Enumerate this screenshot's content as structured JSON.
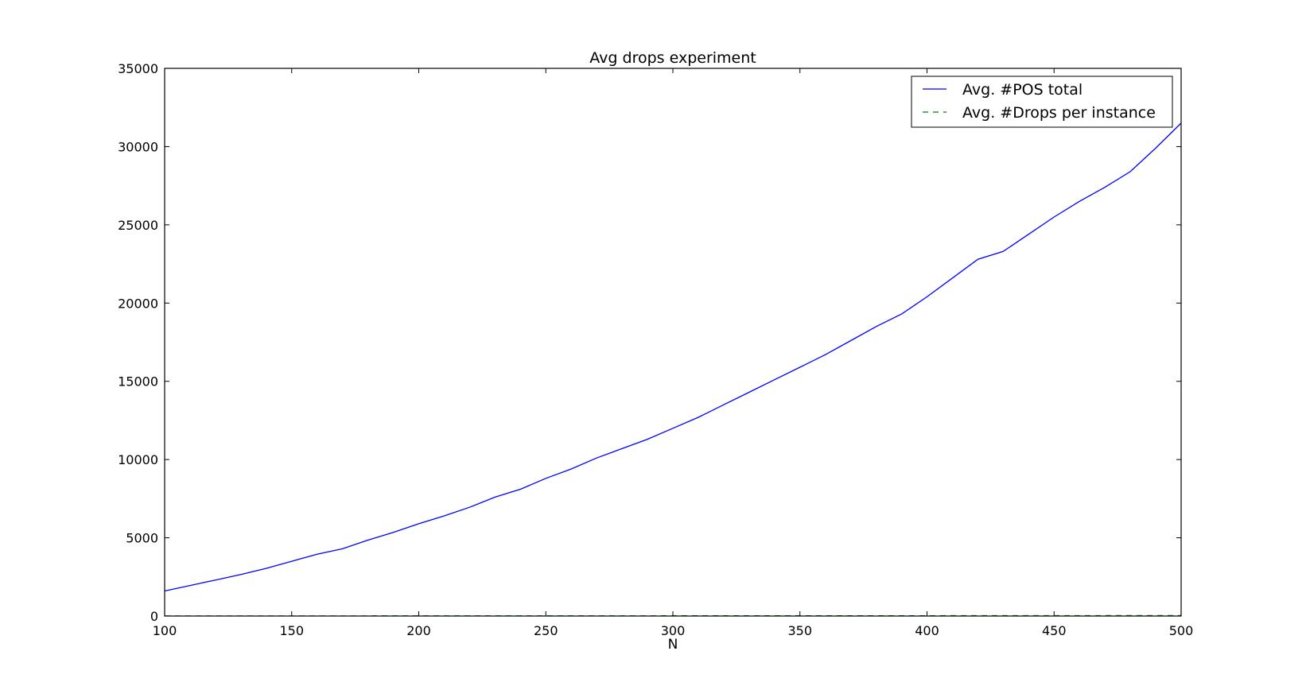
{
  "chart_data": {
    "type": "line",
    "title": "Avg drops experiment",
    "xlabel": "N",
    "ylabel": "",
    "xlim": [
      100,
      500
    ],
    "ylim": [
      0,
      35000
    ],
    "xticks": [
      100,
      150,
      200,
      250,
      300,
      350,
      400,
      450,
      500
    ],
    "yticks": [
      0,
      5000,
      10000,
      15000,
      20000,
      25000,
      30000,
      35000
    ],
    "grid": false,
    "legend_position": "top-right",
    "series": [
      {
        "name": "Avg. #POS total",
        "color": "#0000ff",
        "style": "solid",
        "x": [
          100,
          110,
          120,
          130,
          140,
          150,
          160,
          170,
          180,
          190,
          200,
          210,
          220,
          230,
          240,
          250,
          260,
          270,
          280,
          290,
          300,
          310,
          320,
          330,
          340,
          350,
          360,
          370,
          380,
          390,
          400,
          410,
          420,
          430,
          440,
          450,
          460,
          470,
          480,
          490,
          500
        ],
        "y": [
          1600,
          1950,
          2300,
          2650,
          3050,
          3500,
          3950,
          4300,
          4850,
          5350,
          5900,
          6400,
          6950,
          7600,
          8100,
          8800,
          9400,
          10100,
          10700,
          11300,
          12000,
          12700,
          13500,
          14300,
          15100,
          15900,
          16700,
          17600,
          18500,
          19300,
          20400,
          21600,
          22800,
          23300,
          24400,
          25500,
          26500,
          27400,
          28400,
          29900,
          31500
        ]
      },
      {
        "name": "Avg. #Drops per instance",
        "color": "#008000",
        "style": "dashed",
        "x": [
          100,
          150,
          200,
          250,
          300,
          350,
          400,
          450,
          500
        ],
        "y": [
          5,
          7,
          9,
          11,
          14,
          17,
          20,
          24,
          28
        ]
      }
    ]
  }
}
